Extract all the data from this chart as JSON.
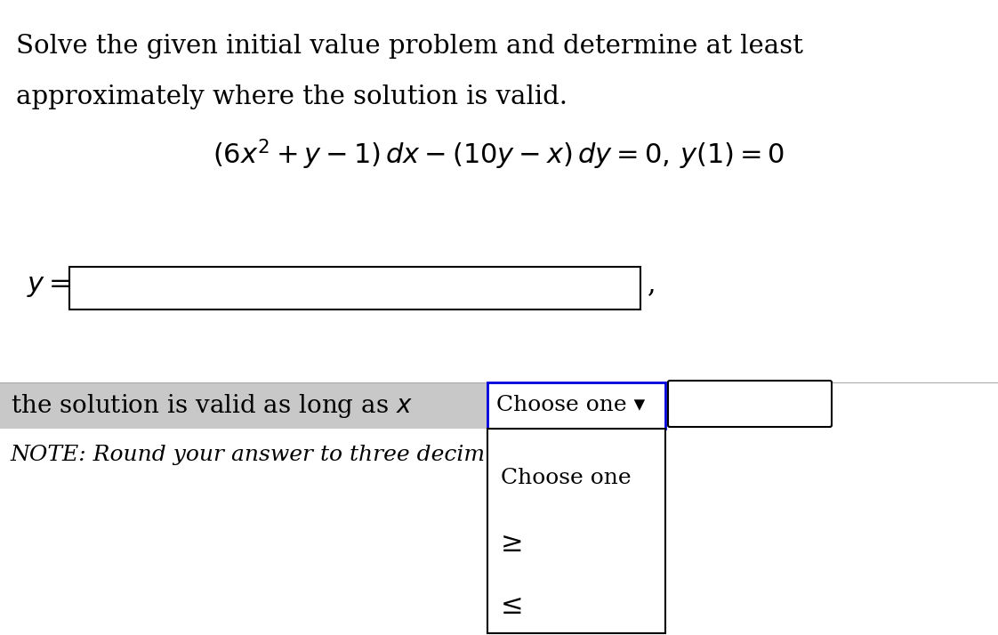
{
  "background_color": "#ffffff",
  "title_line1": "Solve the given initial value problem and determine at least",
  "title_line2": "approximately where the solution is valid.",
  "equation": "$(6x^2 + y - 1)\\, dx - (10y - x)\\, dy = 0,\\, y(1) = 0$",
  "y_label": "$y =$",
  "validity_text": "the solution is valid as long as $x$",
  "choose_one_label": "Choose one ▾",
  "dropdown_items": [
    "Choose one",
    "≥",
    "≤"
  ],
  "note_text": "NOTE: Round your answer to three decim",
  "input_box_color": "#ffffff",
  "input_box_border": "#000000",
  "dropdown_border_color": "#0000dd",
  "highlight_bg": "#c8c8c8",
  "font_size_title": 21,
  "font_size_eq": 22,
  "font_size_label": 22,
  "font_size_validity": 20,
  "font_size_note": 18,
  "font_size_dropdown": 18,
  "fig_width": 11.22,
  "fig_height": 7.14,
  "dpi": 100
}
